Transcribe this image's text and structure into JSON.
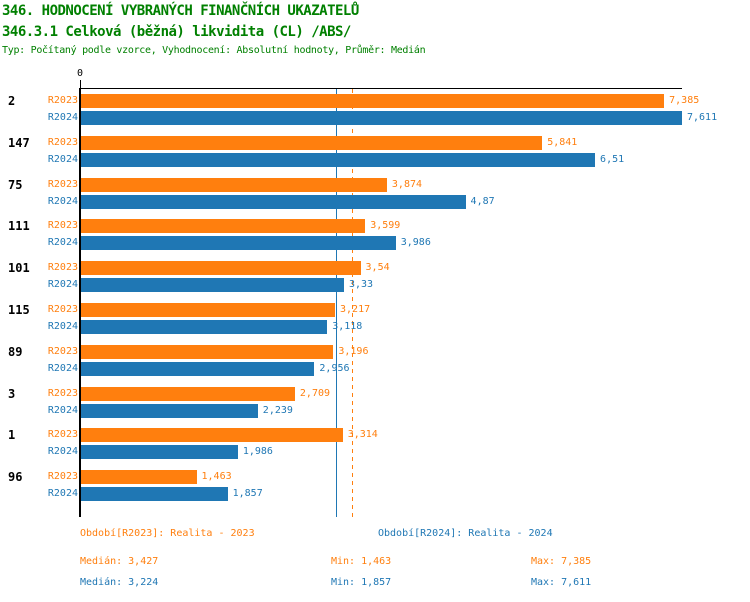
{
  "titles": {
    "line1": "346. HODNOCENÍ VYBRANÝCH FINANČNÍCH UKAZATELŮ",
    "line2": "346.3.1 Celková (běžná) likvidita (CL) /ABS/",
    "subtitle": "Typ: Počítaný podle vzorce, Vyhodnocení: Absolutní hodnoty, Průměr: Medián"
  },
  "colors": {
    "heading": "#008000",
    "r2023": "#ff7f0e",
    "r2024": "#1f77b4",
    "axis": "#000000",
    "background": "#ffffff"
  },
  "chart_data": {
    "type": "bar",
    "orientation": "horizontal",
    "title": "346.3.1 Celková (běžná) likvidita (CL) /ABS/",
    "grid": false,
    "x_axis": {
      "origin_label": "0",
      "min": 0,
      "max": 7.611
    },
    "categories": [
      "2",
      "147",
      "75",
      "111",
      "101",
      "115",
      "89",
      "3",
      "1",
      "96"
    ],
    "series": [
      {
        "key": "r2023",
        "name": "R2023",
        "color": "#ff7f0e",
        "median": 3.427,
        "median_line_style": "dashed",
        "values": [
          7.385,
          5.841,
          3.874,
          3.599,
          3.54,
          3.217,
          3.196,
          2.709,
          3.314,
          1.463
        ],
        "labels": [
          "7,385",
          "5,841",
          "3,874",
          "3,599",
          "3,54",
          "3,217",
          "3,196",
          "2,709",
          "3,314",
          "1,463"
        ]
      },
      {
        "key": "r2024",
        "name": "R2024",
        "color": "#1f77b4",
        "median": 3.224,
        "median_line_style": "solid",
        "values": [
          7.611,
          6.51,
          4.87,
          3.986,
          3.33,
          3.118,
          2.956,
          2.239,
          1.986,
          1.857
        ],
        "labels": [
          "7,611",
          "6,51",
          "4,87",
          "3,986",
          "3,33",
          "3,118",
          "2,956",
          "2,239",
          "1,986",
          "1,857"
        ]
      }
    ]
  },
  "legend": {
    "r2023": {
      "period": "Období[R2023]: Realita - 2023",
      "median": "Medián: 3,427",
      "min": "Min: 1,463",
      "max": "Max: 7,385"
    },
    "r2024": {
      "period": "Období[R2024]: Realita - 2024",
      "median": "Medián: 3,224",
      "min": "Min: 1,857",
      "max": "Max: 7,611"
    }
  }
}
